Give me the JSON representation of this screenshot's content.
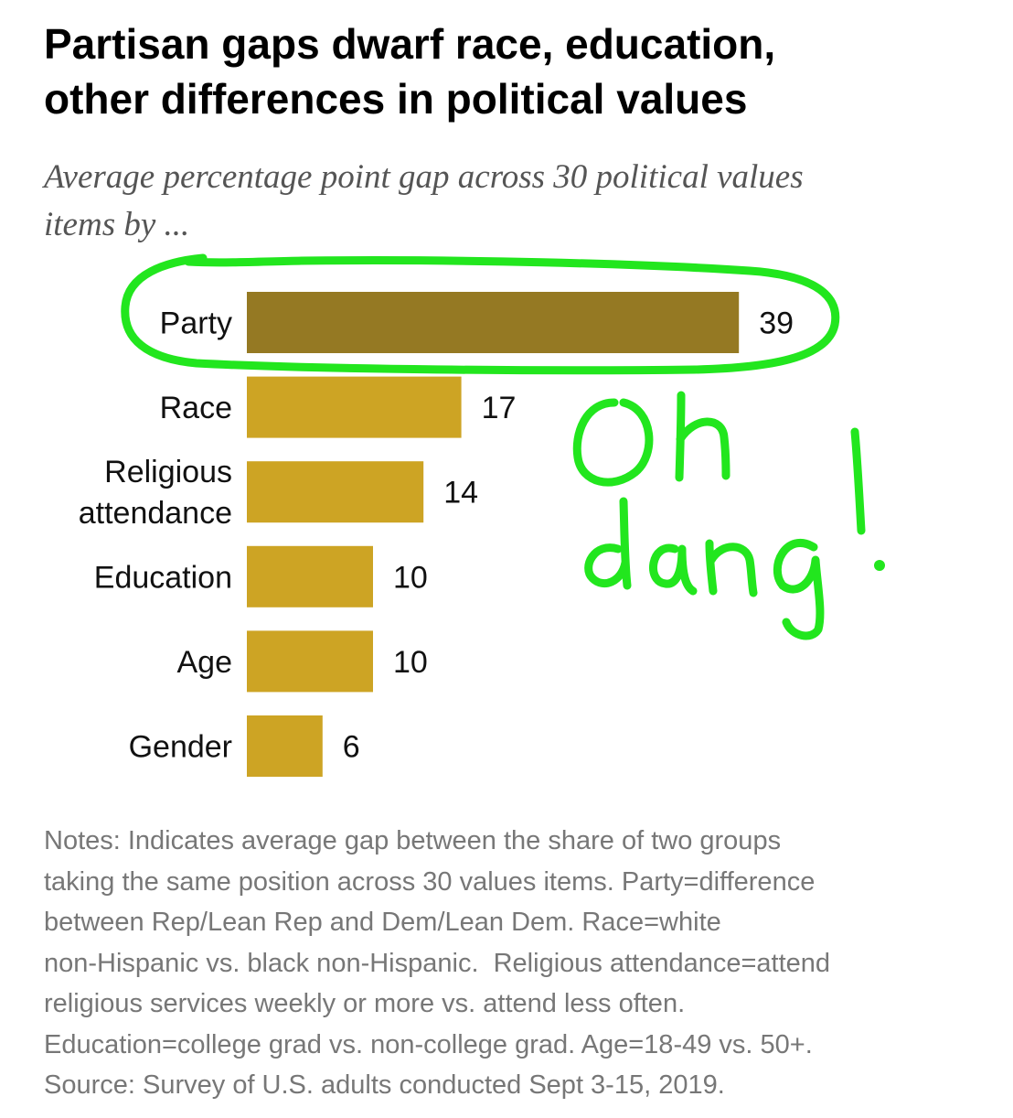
{
  "header": {
    "title_line1": "Partisan gaps dwarf race, education,",
    "title_line2": "other differences in political values",
    "subtitle_line1": "Average percentage point gap across 30 political values",
    "subtitle_line2": "items by ..."
  },
  "chart_data": {
    "type": "bar",
    "orientation": "horizontal",
    "categories": [
      "Party",
      "Race",
      "Religious attendance",
      "Education",
      "Age",
      "Gender"
    ],
    "category_lines": [
      [
        "Party"
      ],
      [
        "Race"
      ],
      [
        "Religious",
        "attendance"
      ],
      [
        "Education"
      ],
      [
        "Age"
      ],
      [
        "Gender"
      ]
    ],
    "values": [
      39,
      17,
      14,
      10,
      10,
      6
    ],
    "value_labels": [
      "39",
      "17",
      "14",
      "10",
      "10",
      "6"
    ],
    "highlighted_category": "Party",
    "colors": {
      "bar": "#CDA424",
      "highlight_bar": "#957923"
    },
    "grid": false,
    "legend": "none"
  },
  "annotation": {
    "handwritten_text": "Oh dang!",
    "color": "#22E61E"
  },
  "notes": {
    "lines": [
      "Notes: Indicates average gap between the share of two groups",
      "taking the same position across 30 values items. Party=difference",
      "between Rep/Lean Rep and Dem/Lean Dem. Race=white",
      "non-Hispanic vs. black non-Hispanic.  Religious attendance=attend",
      "religious services weekly or more vs. attend less often.",
      "Education=college grad vs. non-college grad. Age=18-49 vs. 50+.",
      "Source: Survey of U.S. adults conducted Sept 3-15, 2019."
    ]
  }
}
